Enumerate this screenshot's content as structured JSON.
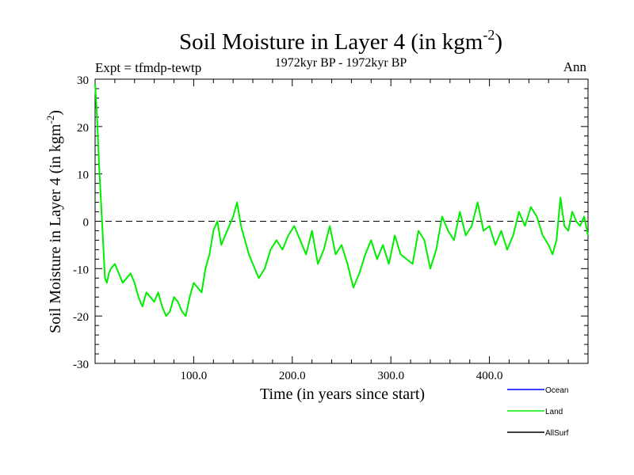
{
  "chart_data": {
    "type": "line",
    "title_main": "Soil Moisture in Layer 4 (in kgm",
    "title_sup": "-2",
    "title_close": ")",
    "subtitle": "1972kyr BP - 1972kyr BP",
    "expt_label": "Expt = tfmdp-tewtp",
    "period_label": "Ann",
    "xlabel": "Time (in years since start)",
    "ylabel_main": "Soil Moisture in Layer 4 (in kgm",
    "ylabel_sup": "-2",
    "ylabel_close": ")",
    "xlim": [
      0,
      500
    ],
    "ylim": [
      -30,
      30
    ],
    "x_ticks": [
      100,
      200,
      300,
      400
    ],
    "x_tick_labels": [
      "100.0",
      "200.0",
      "300.0",
      "400.0"
    ],
    "y_ticks": [
      -30,
      -20,
      -10,
      0,
      10,
      20,
      30
    ],
    "y_tick_labels": [
      "-30",
      "-20",
      "-10",
      "0",
      "10",
      "20",
      "30"
    ],
    "reference_line": 0,
    "series": [
      {
        "name": "Land",
        "color": "#00ee00",
        "x": [
          0,
          2,
          4,
          6,
          8,
          10,
          12,
          14,
          16,
          20,
          24,
          28,
          32,
          36,
          40,
          44,
          48,
          52,
          56,
          60,
          64,
          68,
          72,
          76,
          80,
          84,
          88,
          92,
          96,
          100,
          104,
          108,
          112,
          116,
          120,
          124,
          128,
          132,
          136,
          140,
          144,
          148,
          152,
          156,
          160,
          166,
          172,
          178,
          184,
          190,
          196,
          202,
          208,
          214,
          220,
          226,
          232,
          238,
          244,
          250,
          256,
          262,
          268,
          274,
          280,
          286,
          292,
          298,
          304,
          310,
          316,
          322,
          328,
          334,
          340,
          346,
          352,
          358,
          364,
          370,
          376,
          382,
          388,
          394,
          400,
          406,
          412,
          418,
          424,
          430,
          436,
          442,
          448,
          454,
          460,
          464,
          468,
          472,
          476,
          480,
          484,
          488,
          492,
          496,
          500
        ],
        "values": [
          29,
          22,
          12,
          4,
          -4,
          -12,
          -13,
          -11,
          -10,
          -9,
          -11,
          -13,
          -12,
          -11,
          -13,
          -16,
          -18,
          -15,
          -16,
          -17,
          -15,
          -18,
          -20,
          -19,
          -16,
          -17,
          -19,
          -20,
          -16,
          -13,
          -14,
          -15,
          -10,
          -7,
          -2,
          0,
          -5,
          -3,
          -1,
          1,
          4,
          -1,
          -4,
          -7,
          -9,
          -12,
          -10,
          -6,
          -4,
          -6,
          -3,
          -1,
          -4,
          -7,
          -2,
          -9,
          -6,
          -1,
          -7,
          -5,
          -9,
          -14,
          -11,
          -7,
          -4,
          -8,
          -5,
          -9,
          -3,
          -7,
          -8,
          -9,
          -2,
          -4,
          -10,
          -6,
          1,
          -2,
          -4,
          2,
          -3,
          -1,
          4,
          -2,
          -1,
          -5,
          -2,
          -6,
          -3,
          2,
          -1,
          3,
          1,
          -3,
          -5,
          -7,
          -4,
          5,
          -1,
          -2,
          2,
          0,
          -1,
          1,
          -3
        ]
      }
    ],
    "legend": [
      {
        "name": "Ocean",
        "color": "#0000ff"
      },
      {
        "name": "Land",
        "color": "#00ee00"
      },
      {
        "name": "AllSurf",
        "color": "#000000"
      }
    ]
  }
}
